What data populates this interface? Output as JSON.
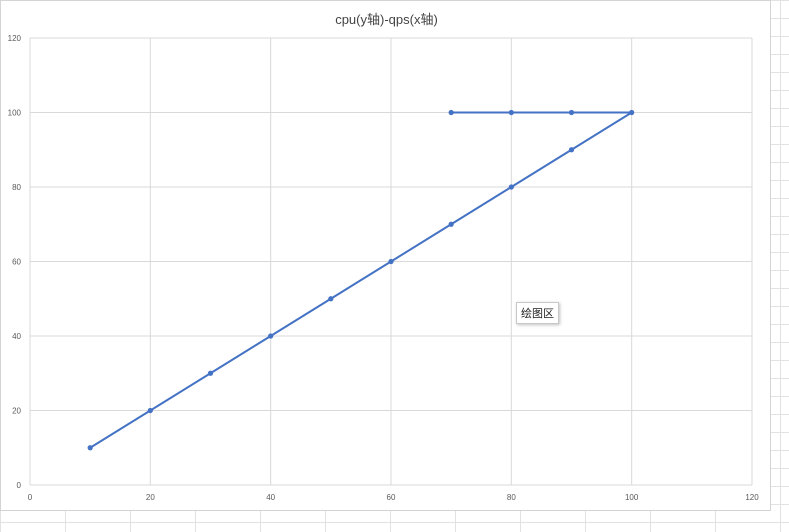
{
  "chart_data": {
    "type": "scatter",
    "title": "cpu(y轴)-qps(x轴)",
    "xlabel": "",
    "ylabel": "",
    "xlim": [
      0,
      120
    ],
    "ylim": [
      0,
      120
    ],
    "x_ticks": [
      0,
      20,
      40,
      60,
      80,
      100,
      120
    ],
    "y_ticks": [
      0,
      20,
      40,
      60,
      80,
      100,
      120
    ],
    "grid": true,
    "legend": "none",
    "color": "#4472c4",
    "series": [
      {
        "points": [
          [
            10,
            10
          ],
          [
            20,
            20
          ],
          [
            30,
            30
          ],
          [
            40,
            40
          ],
          [
            50,
            50
          ],
          [
            60,
            60
          ],
          [
            70,
            70
          ],
          [
            80,
            80
          ],
          [
            90,
            90
          ],
          [
            100,
            100
          ],
          [
            90,
            100
          ],
          [
            80,
            100
          ],
          [
            70,
            100
          ]
        ]
      }
    ]
  },
  "tooltip": {
    "text": "绘图区"
  }
}
